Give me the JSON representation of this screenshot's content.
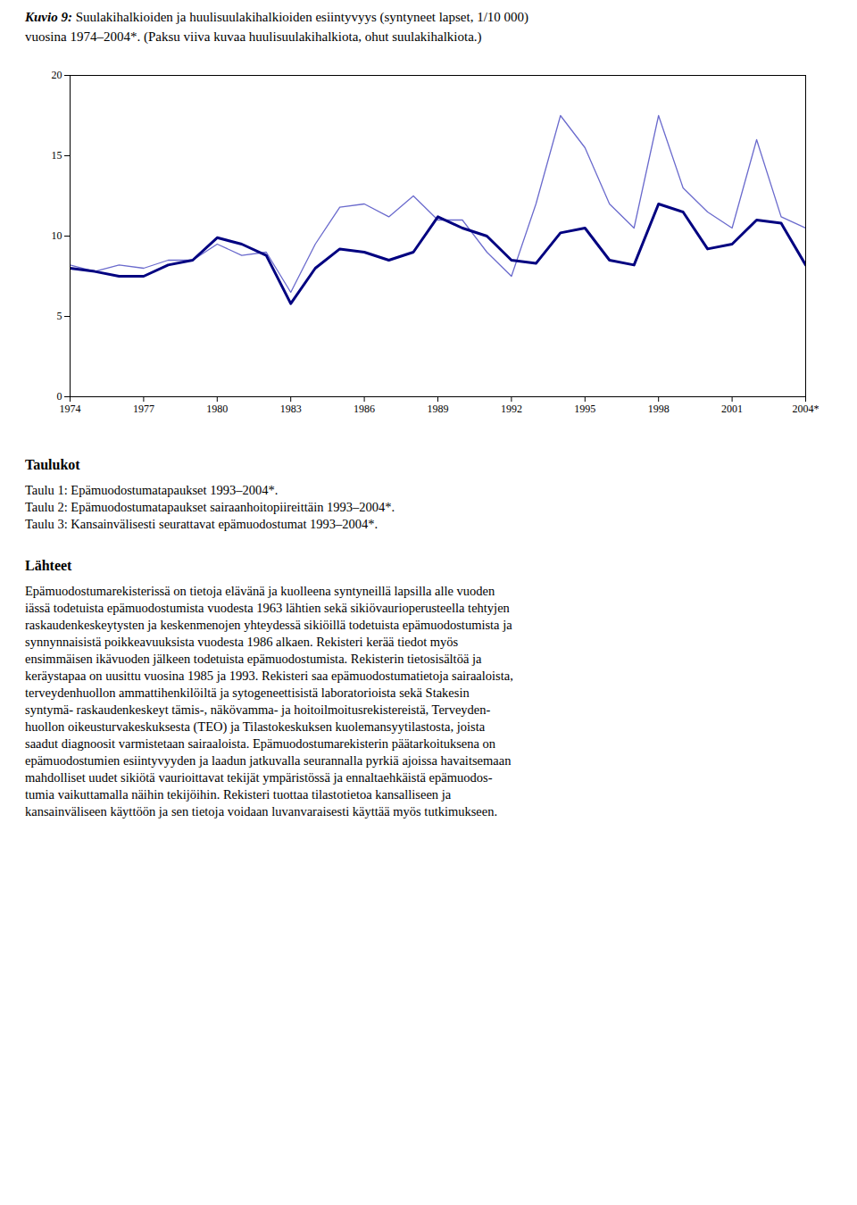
{
  "chart_data": {
    "type": "line",
    "title": "Kuvio 9: Suulakihalkioiden ja huulisuulakihalkioiden esiintyvyys (syntyneet lapset, 1/10 000)",
    "subtitle": "vuosina 1974–2004*. (Paksu viiva kuvaa huulisuulakihalkiota, ohut suulakihalkiota.)",
    "x": [
      1974,
      1975,
      1976,
      1977,
      1978,
      1979,
      1980,
      1981,
      1982,
      1983,
      1984,
      1985,
      1986,
      1987,
      1988,
      1989,
      1990,
      1991,
      1992,
      1993,
      1994,
      1995,
      1996,
      1997,
      1998,
      1999,
      2000,
      2001,
      2002,
      2003,
      2004
    ],
    "series": [
      {
        "color": "#6b6bcd",
        "line_style": "thin",
        "values": [
          8.2,
          7.8,
          8.2,
          8.0,
          8.5,
          8.5,
          9.5,
          8.8,
          9.0,
          6.5,
          9.5,
          11.8,
          12.0,
          11.2,
          12.5,
          11.0,
          11.0,
          9.0,
          7.5,
          12.0,
          17.5,
          15.5,
          12.0,
          10.5,
          17.5,
          13.0,
          11.5,
          10.5,
          16.0,
          11.2,
          10.5
        ]
      },
      {
        "color": "#000080",
        "line_style": "thick",
        "values": [
          8.0,
          7.8,
          7.5,
          7.5,
          8.2,
          8.5,
          9.9,
          9.5,
          8.8,
          5.8,
          8.0,
          9.2,
          9.0,
          8.5,
          9.0,
          11.2,
          10.5,
          10.0,
          8.5,
          8.3,
          10.2,
          10.5,
          8.5,
          8.2,
          12.0,
          11.5,
          9.2,
          9.5,
          11.0,
          10.8,
          8.2
        ]
      }
    ],
    "xlim": [
      1974,
      2004
    ],
    "xticks": [
      1974,
      1977,
      1980,
      1983,
      1986,
      1989,
      1992,
      1995,
      1998,
      2001,
      {
        "value": 2004,
        "label": "2004*"
      }
    ],
    "ylim": [
      0,
      20
    ],
    "yticks": [
      0,
      5,
      10,
      15,
      20
    ],
    "grid": false,
    "annotations": [
      {
        "title": "Taulukot",
        "text": [
          "Taulu 1: Epämuodostumatapaukset 1993–2004*.",
          "Taulu 2: Epämuodostumatapaukset sairaanhoitopiireittäin 1993–2004*.",
          "Taulu 3: Kansainvälisesti seurattavat epämuodostumat 1993–2004*."
        ]
      },
      {
        "title": "Lähteet",
        "text": [
          "Epämuodostumarekisterissä on tietoja elävänä ja kuolleena syntyneillä lapsilla alle vuoden",
          "iässä todetuista epämuodostumista vuodesta 1963 lähtien sekä sikiövaurioperusteella tehtyjen",
          "raskaudenkeskeytysten ja keskenmenojen yhteydessä sikiöillä todetuista epämuodostumista ja",
          "synnynnaisistä poikkeavuuksista vuodesta 1986 alkaen. Rekisteri kerää tiedot myös",
          "ensimmäisen ikävuoden jälkeen todetuista epämuodostumista. Rekisterin tietosisältöä ja",
          "keräystapaa on uusittu vuosina 1985 ja 1993. Rekisteri saa epämuodostumatietoja sairaaloista,",
          "terveydenhuollon ammattihenkilöiltä ja sytogeneettisistä laboratorioista sekä Stakesin",
          "syntymä- raskaudenkeskeyt tämis-, näkövamma- ja hoitoilmoitusrekistereistä, Terveyden-",
          "huollon oikeusturvakeskuksesta (TEO) ja Tilastokeskuksen kuolemansyytilastosta, joista",
          "saadut diagnoosit varmistetaan sairaaloista. Epämuodostumarekisterin päätarkoituksena on",
          "epämuodostumien esiintyvyyden ja laadun jatkuvalla seurannalla pyrkiä ajoissa havaitsemaan",
          "mahdolliset uudet sikiötä vaurioittavat tekijät ympäristössä ja ennaltaehkäistä epämuodos-",
          "tumia vaikuttamalla näihin tekijöihin. Rekisteri tuottaa tilastotietoa kansalliseen ja",
          "kansainväliseen käyttöön ja sen tietoja voidaan luvanvaraisesti käyttää myös tutkimukseen."
        ]
      }
    ]
  }
}
